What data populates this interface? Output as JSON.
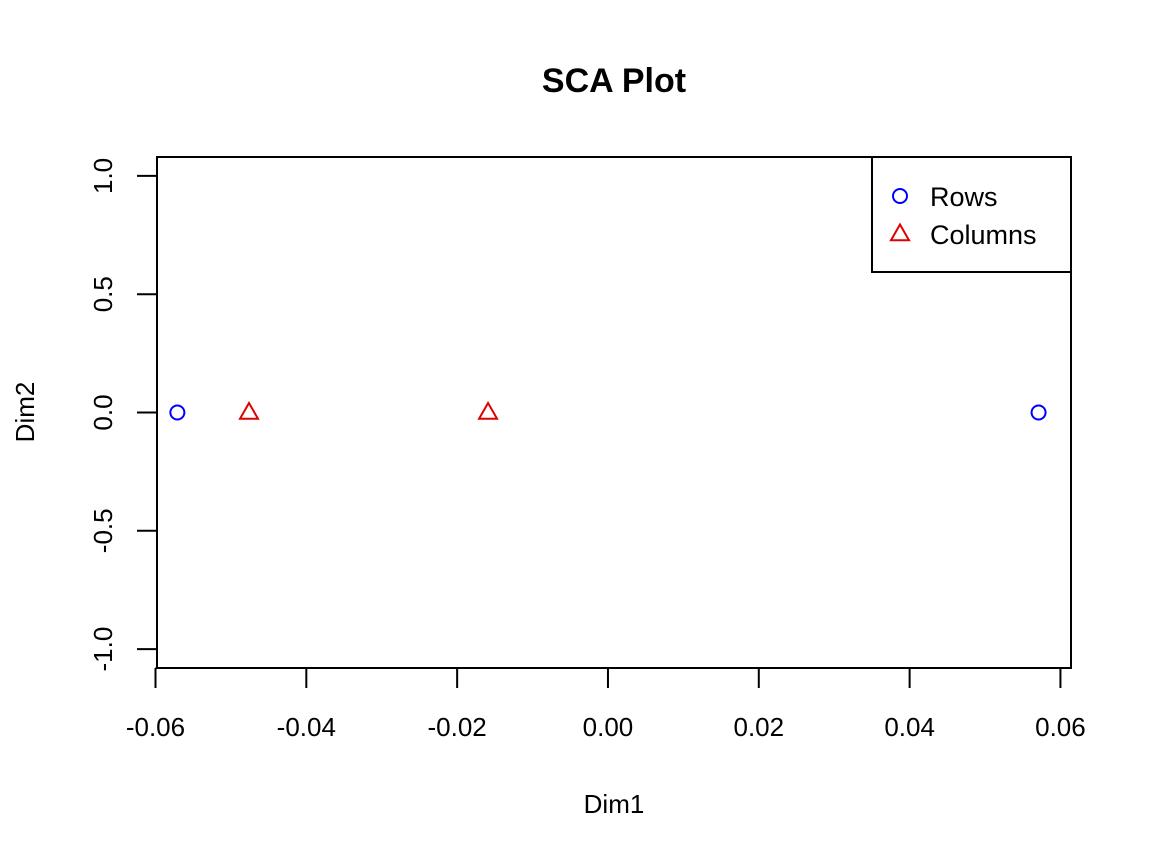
{
  "chart_data": {
    "type": "scatter",
    "title": "SCA Plot",
    "xlabel": "Dim1",
    "ylabel": "Dim2",
    "xlim": [
      -0.0598,
      0.0614
    ],
    "ylim": [
      -1.08,
      1.08
    ],
    "x_ticks": [
      -0.06,
      -0.04,
      -0.02,
      0.0,
      0.02,
      0.04,
      0.06
    ],
    "x_tick_labels": [
      "-0.06",
      "-0.04",
      "-0.02",
      "0.00",
      "0.02",
      "0.04",
      "0.06"
    ],
    "y_ticks": [
      -1.0,
      -0.5,
      0.0,
      0.5,
      1.0
    ],
    "y_tick_labels": [
      "-1.0",
      "-0.5",
      "0.0",
      "0.5",
      "1.0"
    ],
    "grid": false,
    "legend_position": "top-right",
    "series": [
      {
        "name": "Rows",
        "marker": "circle",
        "color": "#0000FF",
        "points": [
          {
            "x": -0.0571,
            "y": 0.0
          },
          {
            "x": 0.0571,
            "y": 0.0
          }
        ]
      },
      {
        "name": "Columns",
        "marker": "triangle",
        "color": "#DF0000",
        "points": [
          {
            "x": -0.0476,
            "y": 0.0
          },
          {
            "x": -0.0159,
            "y": 0.0
          }
        ]
      }
    ]
  }
}
